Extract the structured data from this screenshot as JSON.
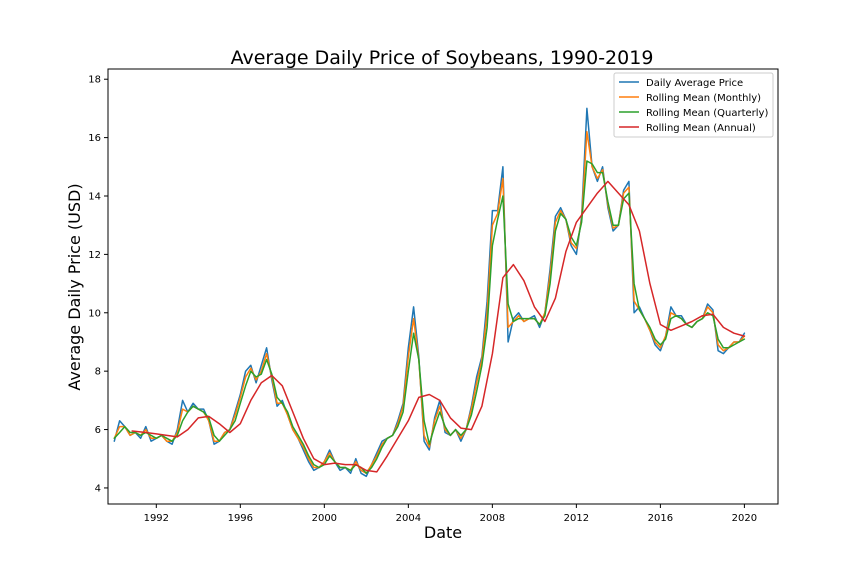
{
  "chart_data": {
    "type": "line",
    "title": "Average Daily Price of Soybeans, 1990-2019",
    "xlabel": "Date",
    "ylabel": "Average Daily Price (USD)",
    "xlim": [
      1989.7,
      2021.6
    ],
    "ylim": [
      3.45,
      18.35
    ],
    "x_ticks": [
      1992,
      1996,
      2000,
      2004,
      2008,
      2012,
      2016,
      2020
    ],
    "x_tick_labels": [
      "1992",
      "1996",
      "2000",
      "2004",
      "2008",
      "2012",
      "2016",
      "2020"
    ],
    "y_ticks": [
      4,
      6,
      8,
      10,
      12,
      14,
      16,
      18
    ],
    "y_tick_labels": [
      "4",
      "6",
      "8",
      "10",
      "12",
      "14",
      "16",
      "18"
    ],
    "grid": false,
    "legend_position": "top-right",
    "series": [
      {
        "name": "Daily Average Price",
        "color": "#1f77b4",
        "x": [
          1990.0,
          1990.25,
          1990.5,
          1990.75,
          1991.0,
          1991.25,
          1991.5,
          1991.75,
          1992.0,
          1992.25,
          1992.5,
          1992.75,
          1993.0,
          1993.25,
          1993.5,
          1993.75,
          1994.0,
          1994.25,
          1994.5,
          1994.75,
          1995.0,
          1995.25,
          1995.5,
          1995.75,
          1996.0,
          1996.25,
          1996.5,
          1996.75,
          1997.0,
          1997.25,
          1997.5,
          1997.75,
          1998.0,
          1998.25,
          1998.5,
          1998.75,
          1999.0,
          1999.25,
          1999.5,
          1999.75,
          2000.0,
          2000.25,
          2000.5,
          2000.75,
          2001.0,
          2001.25,
          2001.5,
          2001.75,
          2002.0,
          2002.25,
          2002.5,
          2002.75,
          2003.0,
          2003.25,
          2003.5,
          2003.75,
          2004.0,
          2004.25,
          2004.5,
          2004.75,
          2005.0,
          2005.25,
          2005.5,
          2005.75,
          2006.0,
          2006.25,
          2006.5,
          2006.75,
          2007.0,
          2007.25,
          2007.5,
          2007.75,
          2008.0,
          2008.25,
          2008.5,
          2008.75,
          2009.0,
          2009.25,
          2009.5,
          2009.75,
          2010.0,
          2010.25,
          2010.5,
          2010.75,
          2011.0,
          2011.25,
          2011.5,
          2011.75,
          2012.0,
          2012.25,
          2012.5,
          2012.75,
          2013.0,
          2013.25,
          2013.5,
          2013.75,
          2014.0,
          2014.25,
          2014.5,
          2014.75,
          2015.0,
          2015.25,
          2015.5,
          2015.75,
          2016.0,
          2016.25,
          2016.5,
          2016.75,
          2017.0,
          2017.25,
          2017.5,
          2017.75,
          2018.0,
          2018.25,
          2018.5,
          2018.75,
          2019.0,
          2019.25,
          2019.5,
          2019.75,
          2020.0
        ],
        "values": [
          5.6,
          6.3,
          6.1,
          5.8,
          5.9,
          5.7,
          6.1,
          5.6,
          5.7,
          5.8,
          5.6,
          5.5,
          6.0,
          7.0,
          6.6,
          6.9,
          6.7,
          6.7,
          6.3,
          5.5,
          5.6,
          5.9,
          6.0,
          6.6,
          7.2,
          8.0,
          8.2,
          7.6,
          8.2,
          8.8,
          7.7,
          6.8,
          7.0,
          6.5,
          6.0,
          5.7,
          5.3,
          4.9,
          4.6,
          4.7,
          4.9,
          5.3,
          4.9,
          4.6,
          4.7,
          4.5,
          5.0,
          4.5,
          4.4,
          4.8,
          5.2,
          5.6,
          5.7,
          5.8,
          6.3,
          6.9,
          8.8,
          10.2,
          8.5,
          5.6,
          5.3,
          6.4,
          7.0,
          5.9,
          5.8,
          6.0,
          5.6,
          6.0,
          6.8,
          7.8,
          8.5,
          10.4,
          13.5,
          13.5,
          15.0,
          9.0,
          9.8,
          10.0,
          9.7,
          9.8,
          9.9,
          9.5,
          10.0,
          11.5,
          13.3,
          13.6,
          13.2,
          12.3,
          12.0,
          13.3,
          17.0,
          15.0,
          14.5,
          15.0,
          13.6,
          12.8,
          13.0,
          14.2,
          14.5,
          10.0,
          10.2,
          9.8,
          9.4,
          8.9,
          8.7,
          9.2,
          10.2,
          9.9,
          9.9,
          9.6,
          9.5,
          9.7,
          9.8,
          10.3,
          10.1,
          8.7,
          8.6,
          8.8,
          9.0,
          9.0,
          9.3
        ]
      },
      {
        "name": "Rolling Mean (Monthly)",
        "color": "#ff7f0e",
        "x": [
          1990.0,
          1990.25,
          1990.5,
          1990.75,
          1991.0,
          1991.25,
          1991.5,
          1991.75,
          1992.0,
          1992.25,
          1992.5,
          1992.75,
          1993.0,
          1993.25,
          1993.5,
          1993.75,
          1994.0,
          1994.25,
          1994.5,
          1994.75,
          1995.0,
          1995.25,
          1995.5,
          1995.75,
          1996.0,
          1996.25,
          1996.5,
          1996.75,
          1997.0,
          1997.25,
          1997.5,
          1997.75,
          1998.0,
          1998.25,
          1998.5,
          1998.75,
          1999.0,
          1999.25,
          1999.5,
          1999.75,
          2000.0,
          2000.25,
          2000.5,
          2000.75,
          2001.0,
          2001.25,
          2001.5,
          2001.75,
          2002.0,
          2002.25,
          2002.5,
          2002.75,
          2003.0,
          2003.25,
          2003.5,
          2003.75,
          2004.0,
          2004.25,
          2004.5,
          2004.75,
          2005.0,
          2005.25,
          2005.5,
          2005.75,
          2006.0,
          2006.25,
          2006.5,
          2006.75,
          2007.0,
          2007.25,
          2007.5,
          2007.75,
          2008.0,
          2008.25,
          2008.5,
          2008.75,
          2009.0,
          2009.25,
          2009.5,
          2009.75,
          2010.0,
          2010.25,
          2010.5,
          2010.75,
          2011.0,
          2011.25,
          2011.5,
          2011.75,
          2012.0,
          2012.25,
          2012.5,
          2012.75,
          2013.0,
          2013.25,
          2013.5,
          2013.75,
          2014.0,
          2014.25,
          2014.5,
          2014.75,
          2015.0,
          2015.25,
          2015.5,
          2015.75,
          2016.0,
          2016.25,
          2016.5,
          2016.75,
          2017.0,
          2017.25,
          2017.5,
          2017.75,
          2018.0,
          2018.25,
          2018.5,
          2018.75,
          2019.0,
          2019.25,
          2019.5,
          2019.75,
          2020.0
        ],
        "values": [
          5.7,
          6.1,
          6.1,
          5.8,
          5.9,
          5.8,
          6.0,
          5.7,
          5.7,
          5.8,
          5.6,
          5.6,
          5.9,
          6.7,
          6.6,
          6.8,
          6.7,
          6.6,
          6.3,
          5.6,
          5.6,
          5.9,
          6.0,
          6.5,
          7.1,
          7.8,
          8.1,
          7.7,
          8.0,
          8.6,
          7.8,
          6.9,
          6.9,
          6.5,
          6.0,
          5.7,
          5.4,
          5.0,
          4.7,
          4.7,
          4.9,
          5.2,
          4.9,
          4.7,
          4.7,
          4.6,
          4.9,
          4.6,
          4.5,
          4.8,
          5.1,
          5.5,
          5.7,
          5.8,
          6.2,
          6.8,
          8.5,
          9.8,
          8.4,
          5.8,
          5.4,
          6.3,
          6.8,
          6.0,
          5.8,
          6.0,
          5.7,
          6.0,
          6.7,
          7.6,
          8.4,
          10.0,
          13.0,
          13.4,
          14.6,
          9.5,
          9.7,
          9.9,
          9.7,
          9.8,
          9.8,
          9.6,
          10.0,
          11.3,
          13.1,
          13.5,
          13.2,
          12.4,
          12.2,
          13.2,
          16.2,
          15.0,
          14.6,
          14.9,
          13.7,
          12.9,
          13.0,
          14.1,
          14.3,
          10.4,
          10.1,
          9.8,
          9.4,
          9.0,
          8.8,
          9.2,
          10.0,
          9.9,
          9.8,
          9.6,
          9.5,
          9.7,
          9.8,
          10.2,
          10.0,
          8.9,
          8.7,
          8.8,
          9.0,
          9.0,
          9.2
        ]
      },
      {
        "name": "Rolling Mean (Quarterly)",
        "color": "#2ca02c",
        "x": [
          1990.0,
          1990.25,
          1990.5,
          1990.75,
          1991.0,
          1991.25,
          1991.5,
          1991.75,
          1992.0,
          1992.25,
          1992.5,
          1992.75,
          1993.0,
          1993.25,
          1993.5,
          1993.75,
          1994.0,
          1994.25,
          1994.5,
          1994.75,
          1995.0,
          1995.25,
          1995.5,
          1995.75,
          1996.0,
          1996.25,
          1996.5,
          1996.75,
          1997.0,
          1997.25,
          1997.5,
          1997.75,
          1998.0,
          1998.25,
          1998.5,
          1998.75,
          1999.0,
          1999.25,
          1999.5,
          1999.75,
          2000.0,
          2000.25,
          2000.5,
          2000.75,
          2001.0,
          2001.25,
          2001.5,
          2001.75,
          2002.0,
          2002.25,
          2002.5,
          2002.75,
          2003.0,
          2003.25,
          2003.5,
          2003.75,
          2004.0,
          2004.25,
          2004.5,
          2004.75,
          2005.0,
          2005.25,
          2005.5,
          2005.75,
          2006.0,
          2006.25,
          2006.5,
          2006.75,
          2007.0,
          2007.25,
          2007.5,
          2007.75,
          2008.0,
          2008.25,
          2008.5,
          2008.75,
          2009.0,
          2009.25,
          2009.5,
          2009.75,
          2010.0,
          2010.25,
          2010.5,
          2010.75,
          2011.0,
          2011.25,
          2011.5,
          2011.75,
          2012.0,
          2012.25,
          2012.5,
          2012.75,
          2013.0,
          2013.25,
          2013.5,
          2013.75,
          2014.0,
          2014.25,
          2014.5,
          2014.75,
          2015.0,
          2015.25,
          2015.5,
          2015.75,
          2016.0,
          2016.25,
          2016.5,
          2016.75,
          2017.0,
          2017.25,
          2017.5,
          2017.75,
          2018.0,
          2018.25,
          2018.5,
          2018.75,
          2019.0,
          2019.25,
          2019.5,
          2019.75,
          2020.0
        ],
        "values": [
          5.7,
          5.9,
          6.1,
          5.9,
          5.9,
          5.8,
          5.9,
          5.8,
          5.7,
          5.8,
          5.7,
          5.6,
          5.8,
          6.3,
          6.6,
          6.8,
          6.7,
          6.6,
          6.4,
          5.8,
          5.6,
          5.8,
          6.0,
          6.3,
          6.9,
          7.5,
          8.0,
          7.8,
          7.9,
          8.4,
          7.9,
          7.1,
          6.9,
          6.6,
          6.1,
          5.8,
          5.5,
          5.1,
          4.8,
          4.7,
          4.8,
          5.1,
          4.9,
          4.7,
          4.7,
          4.6,
          4.8,
          4.7,
          4.5,
          4.7,
          5.0,
          5.4,
          5.7,
          5.8,
          6.1,
          6.6,
          8.0,
          9.3,
          8.4,
          6.3,
          5.5,
          6.1,
          6.6,
          6.1,
          5.8,
          6.0,
          5.8,
          6.0,
          6.5,
          7.3,
          8.2,
          9.5,
          12.3,
          13.2,
          14.0,
          10.3,
          9.7,
          9.8,
          9.8,
          9.8,
          9.8,
          9.6,
          9.9,
          11.0,
          12.8,
          13.4,
          13.2,
          12.6,
          12.3,
          13.1,
          15.2,
          15.1,
          14.8,
          14.8,
          13.8,
          13.0,
          13.0,
          13.9,
          14.1,
          11.0,
          10.1,
          9.8,
          9.5,
          9.1,
          8.9,
          9.1,
          9.8,
          9.9,
          9.8,
          9.6,
          9.5,
          9.7,
          9.8,
          10.0,
          9.9,
          9.1,
          8.8,
          8.8,
          8.9,
          9.0,
          9.1
        ]
      },
      {
        "name": "Rolling Mean (Annual)",
        "color": "#d62728",
        "x": [
          1990.85,
          1991.5,
          1992.0,
          1992.5,
          1993.0,
          1993.5,
          1994.0,
          1994.5,
          1995.0,
          1995.5,
          1996.0,
          1996.5,
          1997.0,
          1997.5,
          1998.0,
          1998.5,
          1999.0,
          1999.5,
          2000.0,
          2000.5,
          2001.0,
          2001.5,
          2002.0,
          2002.5,
          2003.0,
          2003.5,
          2004.0,
          2004.5,
          2005.0,
          2005.5,
          2006.0,
          2006.5,
          2007.0,
          2007.5,
          2008.0,
          2008.5,
          2009.0,
          2009.5,
          2010.0,
          2010.5,
          2011.0,
          2011.5,
          2012.0,
          2012.5,
          2013.0,
          2013.5,
          2014.0,
          2014.5,
          2015.0,
          2015.5,
          2016.0,
          2016.5,
          2017.0,
          2017.5,
          2018.0,
          2018.5,
          2019.0,
          2019.5,
          2020.0
        ],
        "values": [
          5.95,
          5.9,
          5.85,
          5.8,
          5.75,
          6.0,
          6.4,
          6.45,
          6.2,
          5.9,
          6.2,
          7.0,
          7.6,
          7.85,
          7.5,
          6.6,
          5.7,
          5.0,
          4.8,
          4.85,
          4.8,
          4.8,
          4.6,
          4.55,
          5.1,
          5.7,
          6.3,
          7.1,
          7.2,
          7.0,
          6.4,
          6.05,
          6.0,
          6.8,
          8.6,
          11.2,
          11.65,
          11.1,
          10.2,
          9.7,
          10.5,
          12.1,
          13.1,
          13.6,
          14.1,
          14.5,
          14.1,
          13.7,
          12.8,
          11.0,
          9.6,
          9.4,
          9.55,
          9.7,
          9.9,
          9.95,
          9.5,
          9.3,
          9.2
        ]
      }
    ]
  }
}
